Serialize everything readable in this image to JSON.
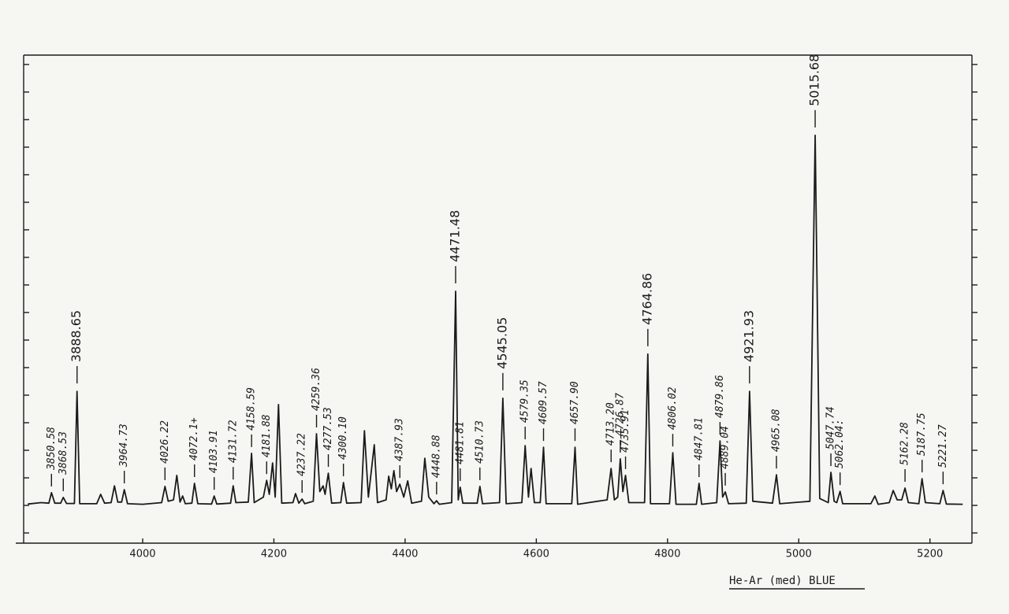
{
  "chart_data": {
    "type": "line",
    "note": "He-Ar (med)  BLUE",
    "color": "#1b1b1b",
    "xlim": [
      3818.6,
      5264
    ],
    "ylim": [
      -0.37,
      17.34
    ],
    "xticks": [
      4000,
      4200,
      4400,
      4600,
      4800,
      5000,
      5200
    ],
    "yticks": [
      0,
      1,
      2,
      3,
      4,
      5,
      6,
      7,
      8,
      9,
      10,
      11,
      12,
      13,
      14,
      15,
      16,
      17
    ],
    "x": [
      3825,
      3845,
      3857,
      3861,
      3866,
      3875,
      3879,
      3884,
      3896,
      3900,
      3904,
      3930,
      3936,
      3942,
      3952,
      3957,
      3962,
      3968,
      3972,
      3977,
      4000,
      4029,
      4034,
      4039,
      4047,
      4052,
      4057,
      4061,
      4065,
      4075,
      4079,
      4084,
      4105,
      4109,
      4113,
      4134,
      4138,
      4142,
      4161,
      4166,
      4170,
      4184,
      4189,
      4193,
      4198,
      4202,
      4207,
      4212,
      4229,
      4233,
      4238,
      4243,
      4247,
      4260,
      4265,
      4270,
      4275,
      4278,
      4283,
      4288,
      4302,
      4306,
      4311,
      4333,
      4338,
      4344,
      4353,
      4358,
      4371,
      4375,
      4379,
      4383,
      4387,
      4392,
      4398,
      4404,
      4410,
      4425,
      4430,
      4436,
      4444,
      4448,
      4452,
      4471,
      4477,
      4481,
      4484,
      4488,
      4510,
      4514,
      4518,
      4544,
      4549,
      4554,
      4578,
      4583,
      4588,
      4592,
      4597,
      4606,
      4611,
      4615,
      4654,
      4659,
      4663,
      4708,
      4714,
      4719,
      4724,
      4728,
      4732,
      4736,
      4741,
      4765,
      4770,
      4774,
      4803,
      4808,
      4813,
      4844,
      4848,
      4852,
      4875,
      4880,
      4884,
      4888,
      4893,
      4920,
      4925,
      4930,
      4960,
      4966,
      4971,
      5017,
      5025,
      5032,
      5045,
      5049,
      5054,
      5058,
      5063,
      5067,
      5110,
      5116,
      5121,
      5138,
      5144,
      5150,
      5157,
      5162,
      5167,
      5183,
      5188,
      5193,
      5215,
      5220,
      5225,
      5250
    ],
    "values": [
      1.05,
      1.1,
      1.08,
      1.46,
      1.08,
      1.08,
      1.29,
      1.07,
      1.07,
      5.14,
      1.06,
      1.06,
      1.4,
      1.08,
      1.1,
      1.71,
      1.12,
      1.12,
      1.57,
      1.06,
      1.04,
      1.1,
      1.69,
      1.15,
      1.2,
      2.09,
      1.12,
      1.34,
      1.06,
      1.08,
      1.8,
      1.06,
      1.05,
      1.34,
      1.05,
      1.08,
      1.71,
      1.1,
      1.12,
      2.89,
      1.1,
      1.3,
      1.91,
      1.4,
      2.54,
      1.3,
      4.66,
      1.08,
      1.1,
      1.43,
      1.08,
      1.23,
      1.06,
      1.15,
      3.6,
      1.5,
      1.71,
      1.4,
      2.17,
      1.08,
      1.1,
      1.83,
      1.08,
      1.1,
      3.71,
      1.3,
      3.2,
      1.1,
      1.2,
      2.06,
      1.6,
      2.26,
      1.5,
      1.77,
      1.3,
      1.89,
      1.08,
      1.15,
      2.71,
      1.3,
      1.06,
      1.17,
      1.04,
      1.1,
      8.77,
      1.2,
      1.66,
      1.08,
      1.08,
      1.69,
      1.06,
      1.1,
      4.89,
      1.06,
      1.1,
      3.17,
      1.3,
      2.34,
      1.1,
      1.1,
      3.11,
      1.06,
      1.06,
      3.11,
      1.04,
      1.2,
      2.34,
      1.2,
      1.3,
      2.69,
      1.5,
      2.09,
      1.1,
      1.1,
      6.49,
      1.06,
      1.06,
      2.91,
      1.04,
      1.04,
      1.8,
      1.04,
      1.1,
      3.34,
      1.3,
      1.49,
      1.06,
      1.08,
      5.14,
      1.15,
      1.08,
      2.11,
      1.06,
      1.15,
      14.43,
      1.25,
      1.1,
      2.2,
      1.15,
      1.1,
      1.51,
      1.06,
      1.06,
      1.34,
      1.04,
      1.1,
      1.54,
      1.2,
      1.2,
      1.63,
      1.1,
      1.06,
      1.97,
      1.1,
      1.06,
      1.54,
      1.05,
      1.04
    ],
    "annotations": [
      {
        "text": "3850.58",
        "x": 3861
      },
      {
        "text": "3868.53",
        "x": 3879
      },
      {
        "text": "3888.65",
        "x": 3900
      },
      {
        "text": "3964.73",
        "x": 3972
      },
      {
        "text": "4026.22",
        "x": 4034
      },
      {
        "text": "4072.1+",
        "x": 4079
      },
      {
        "text": "4103.91",
        "x": 4109
      },
      {
        "text": "4131.72",
        "x": 4138
      },
      {
        "text": "4158.59",
        "x": 4166
      },
      {
        "text": "4181.88",
        "x": 4189
      },
      {
        "text": "4237.22",
        "x": 4243
      },
      {
        "text": "4259.36",
        "x": 4265
      },
      {
        "text": "4277.53",
        "x": 4283
      },
      {
        "text": "4300.10",
        "x": 4306
      },
      {
        "text": "4387.93",
        "x": 4392
      },
      {
        "text": "4448.88",
        "x": 4448
      },
      {
        "text": "4471.48",
        "x": 4477
      },
      {
        "text": "4481.81",
        "x": 4484
      },
      {
        "text": "4510.73",
        "x": 4514
      },
      {
        "text": "4545.05",
        "x": 4549
      },
      {
        "text": "4579.35",
        "x": 4583
      },
      {
        "text": "4609.57",
        "x": 4611
      },
      {
        "text": "4657.90",
        "x": 4659
      },
      {
        "text": "4713.20",
        "x": 4714
      },
      {
        "text": "4726.87",
        "x": 4728
      },
      {
        "text": "4735.91",
        "x": 4736
      },
      {
        "text": "4764.86",
        "x": 4770
      },
      {
        "text": "4806.02",
        "x": 4808
      },
      {
        "text": "4847.81",
        "x": 4848
      },
      {
        "text": "4879.86",
        "x": 4880
      },
      {
        "text": "4889.04",
        "x": 4888
      },
      {
        "text": "4921.93",
        "x": 4925
      },
      {
        "text": "4965.08",
        "x": 4966
      },
      {
        "text": "5015.68",
        "x": 5025
      },
      {
        "text": "5047.74",
        "x": 5049
      },
      {
        "text": "5062.04:",
        "x": 5063
      },
      {
        "text": "5162.28",
        "x": 5162
      },
      {
        "text": "5187.75",
        "x": 5188
      },
      {
        "text": "5221.27",
        "x": 5220
      }
    ]
  }
}
